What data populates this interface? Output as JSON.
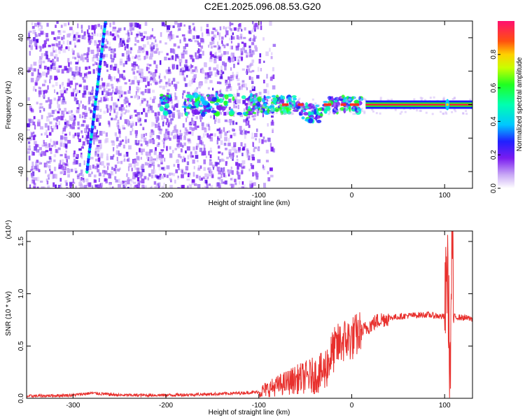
{
  "title": "C2E1.2025.096.08.53.G20",
  "chart_data": [
    {
      "type": "heatmap",
      "xlabel": "Height of straight line (km)",
      "ylabel": "Frequency (Hz)",
      "xlim": [
        -350,
        130
      ],
      "ylim": [
        -50,
        50
      ],
      "xticks": [
        -300,
        -200,
        -100,
        0,
        100
      ],
      "yticks": [
        -40,
        -20,
        0,
        20,
        40
      ],
      "colorbar": {
        "label": "Normalized spectral amplitude",
        "range": [
          0.0,
          1.0
        ],
        "ticks": [
          "0.0",
          "0.2",
          "0.4",
          "0.6",
          "0.8"
        ],
        "tick_values": [
          0.0,
          0.2,
          0.4,
          0.6,
          0.8
        ]
      },
      "features": {
        "noise_region_x": [
          -350,
          -105
        ],
        "sloped_trace": {
          "x": [
            -285,
            -265
          ],
          "y": [
            -40,
            50
          ]
        },
        "main_line": {
          "x": [
            -110,
            130
          ],
          "y": 0
        }
      }
    },
    {
      "type": "line",
      "xlabel": "Height of straight line (km)",
      "ylabel": "SNR (10 * v/v)",
      "ymultiplier": "(x10⁴)",
      "xlim": [
        -350,
        130
      ],
      "ylim": [
        0,
        1.6
      ],
      "xticks": [
        -300,
        -200,
        -100,
        0,
        100
      ],
      "yticks": [
        0.0,
        0.5,
        1.0,
        1.5
      ],
      "ytick_labels": [
        "0.0",
        "0.5",
        "1.0",
        "1.5"
      ],
      "series": [
        {
          "color": "#e8302d",
          "x": [
            -350,
            -300,
            -280,
            -250,
            -200,
            -150,
            -120,
            -100,
            -80,
            -60,
            -50,
            -40,
            -30,
            -20,
            -10,
            0,
            10,
            20,
            30,
            40,
            60,
            80,
            100,
            103,
            106,
            108,
            110,
            120,
            130
          ],
          "y": [
            0.02,
            0.03,
            0.05,
            0.03,
            0.03,
            0.04,
            0.05,
            0.06,
            0.12,
            0.18,
            0.2,
            0.22,
            0.25,
            0.45,
            0.55,
            0.57,
            0.63,
            0.7,
            0.75,
            0.77,
            0.79,
            0.8,
            0.78,
            1.3,
            0.2,
            1.6,
            0.78,
            0.77,
            0.76
          ]
        }
      ]
    }
  ]
}
